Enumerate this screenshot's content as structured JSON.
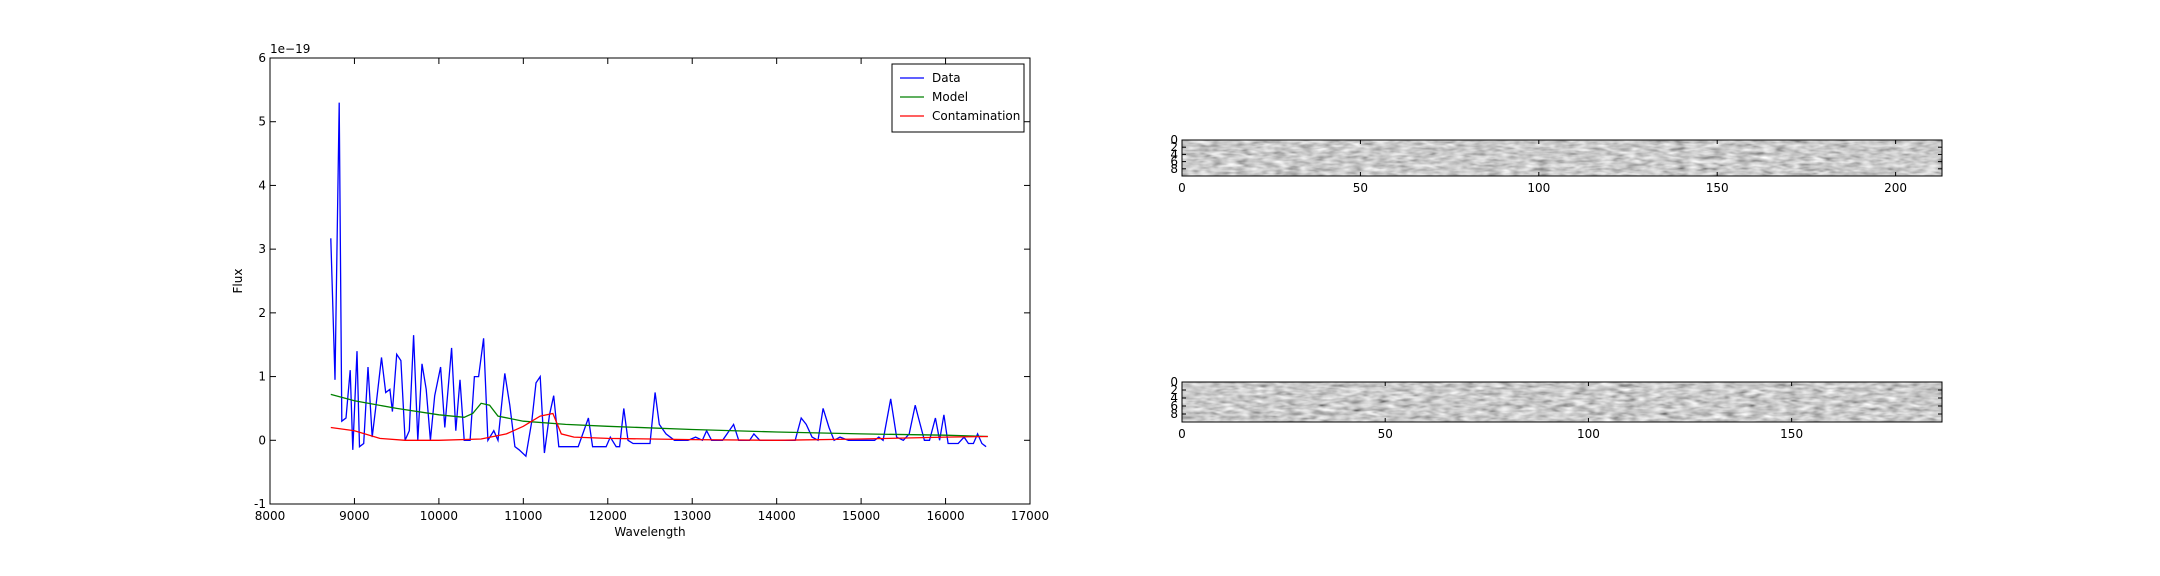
{
  "chart_data": [
    {
      "type": "line",
      "x_label": "Wavelength",
      "y_label": "Flux",
      "y_offset_label": "1e−19",
      "xlim": [
        8000,
        17000
      ],
      "xticks": [
        8000,
        9000,
        10000,
        11000,
        12000,
        13000,
        14000,
        15000,
        16000,
        17000
      ],
      "ylim": [
        -1,
        6
      ],
      "yticks": [
        -1,
        0,
        1,
        2,
        3,
        4,
        5,
        6
      ],
      "legend": "upper right",
      "series": [
        {
          "name": "Data",
          "color": "#0000ff",
          "x": [
            8720,
            8770,
            8820,
            8850,
            8900,
            8950,
            8980,
            9030,
            9060,
            9110,
            9160,
            9210,
            9260,
            9320,
            9370,
            9420,
            9450,
            9500,
            9550,
            9600,
            9650,
            9700,
            9750,
            9800,
            9850,
            9900,
            9950,
            10020,
            10070,
            10150,
            10200,
            10250,
            10300,
            10370,
            10420,
            10470,
            10530,
            10580,
            10650,
            10700,
            10780,
            10840,
            10900,
            10950,
            11030,
            11100,
            11150,
            11200,
            11250,
            11310,
            11360,
            11420,
            11520,
            11650,
            11770,
            11820,
            11980,
            12030,
            12100,
            12140,
            12190,
            12240,
            12300,
            12380,
            12500,
            12560,
            12610,
            12690,
            12790,
            12950,
            13040,
            13120,
            13170,
            13230,
            13360,
            13490,
            13550,
            13680,
            13730,
            13800,
            14010,
            14170,
            14220,
            14290,
            14350,
            14420,
            14490,
            14550,
            14620,
            14680,
            14750,
            14850,
            14980,
            15160,
            15210,
            15260,
            15350,
            15420,
            15500,
            15570,
            15640,
            15680,
            15750,
            15810,
            15880,
            15930,
            15980,
            16030,
            16090,
            16150,
            16220,
            16270,
            16330,
            16380,
            16430,
            16480
          ],
          "values": [
            3.17,
            0.95,
            5.3,
            0.3,
            0.35,
            1.1,
            -0.15,
            1.4,
            -0.1,
            -0.05,
            1.15,
            0.05,
            0.6,
            1.3,
            0.75,
            0.8,
            0.45,
            1.35,
            1.25,
            0.0,
            0.15,
            1.65,
            0.0,
            1.2,
            0.8,
            0.0,
            0.7,
            1.15,
            0.2,
            1.45,
            0.15,
            0.95,
            0.0,
            0.0,
            1.0,
            1.0,
            1.6,
            0.0,
            0.15,
            0.0,
            1.05,
            0.55,
            -0.1,
            -0.15,
            -0.25,
            0.3,
            0.9,
            1.0,
            -0.2,
            0.4,
            0.7,
            -0.1,
            -0.1,
            -0.1,
            0.35,
            -0.1,
            -0.1,
            0.05,
            -0.1,
            -0.1,
            0.5,
            0.0,
            -0.05,
            -0.05,
            -0.05,
            0.75,
            0.25,
            0.1,
            0.0,
            0.0,
            0.05,
            0.0,
            0.15,
            0.0,
            0.0,
            0.25,
            0.0,
            0.0,
            0.1,
            0.0,
            0.0,
            0.0,
            0.0,
            0.35,
            0.25,
            0.05,
            0.0,
            0.5,
            0.2,
            0.0,
            0.05,
            0.0,
            0.0,
            0.0,
            0.05,
            0.0,
            0.65,
            0.05,
            0.0,
            0.1,
            0.55,
            0.35,
            0.0,
            0.0,
            0.35,
            0.0,
            0.4,
            -0.05,
            -0.05,
            -0.05,
            0.05,
            -0.05,
            -0.05,
            0.1,
            -0.05,
            -0.1
          ]
        },
        {
          "name": "Model",
          "color": "#008000",
          "x": [
            8720,
            9000,
            9500,
            10000,
            10300,
            10400,
            10500,
            10600,
            10700,
            11000,
            11500,
            12000,
            13000,
            14000,
            15000,
            16000,
            16500
          ],
          "values": [
            0.72,
            0.62,
            0.5,
            0.4,
            0.36,
            0.42,
            0.58,
            0.55,
            0.38,
            0.3,
            0.25,
            0.22,
            0.17,
            0.13,
            0.1,
            0.08,
            0.06
          ]
        },
        {
          "name": "Contamination",
          "color": "#ff0000",
          "x": [
            8720,
            9000,
            9300,
            9600,
            10000,
            10500,
            10800,
            11000,
            11200,
            11350,
            11450,
            11600,
            12000,
            13000,
            14000,
            15000,
            16000,
            16500
          ],
          "values": [
            0.2,
            0.15,
            0.03,
            0.0,
            0.0,
            0.02,
            0.1,
            0.22,
            0.38,
            0.42,
            0.1,
            0.05,
            0.03,
            0.01,
            0.0,
            0.02,
            0.05,
            0.06
          ]
        }
      ]
    },
    {
      "type": "image",
      "xlim": [
        0,
        213
      ],
      "xticks": [
        0,
        50,
        100,
        150,
        200
      ],
      "ylim": [
        10,
        0
      ],
      "yticks": [
        0,
        2,
        4,
        6,
        8
      ]
    },
    {
      "type": "image",
      "xlim": [
        0,
        187
      ],
      "xticks": [
        0,
        50,
        100,
        150
      ],
      "ylim": [
        10,
        0
      ],
      "yticks": [
        0,
        2,
        4,
        6,
        8
      ]
    }
  ]
}
